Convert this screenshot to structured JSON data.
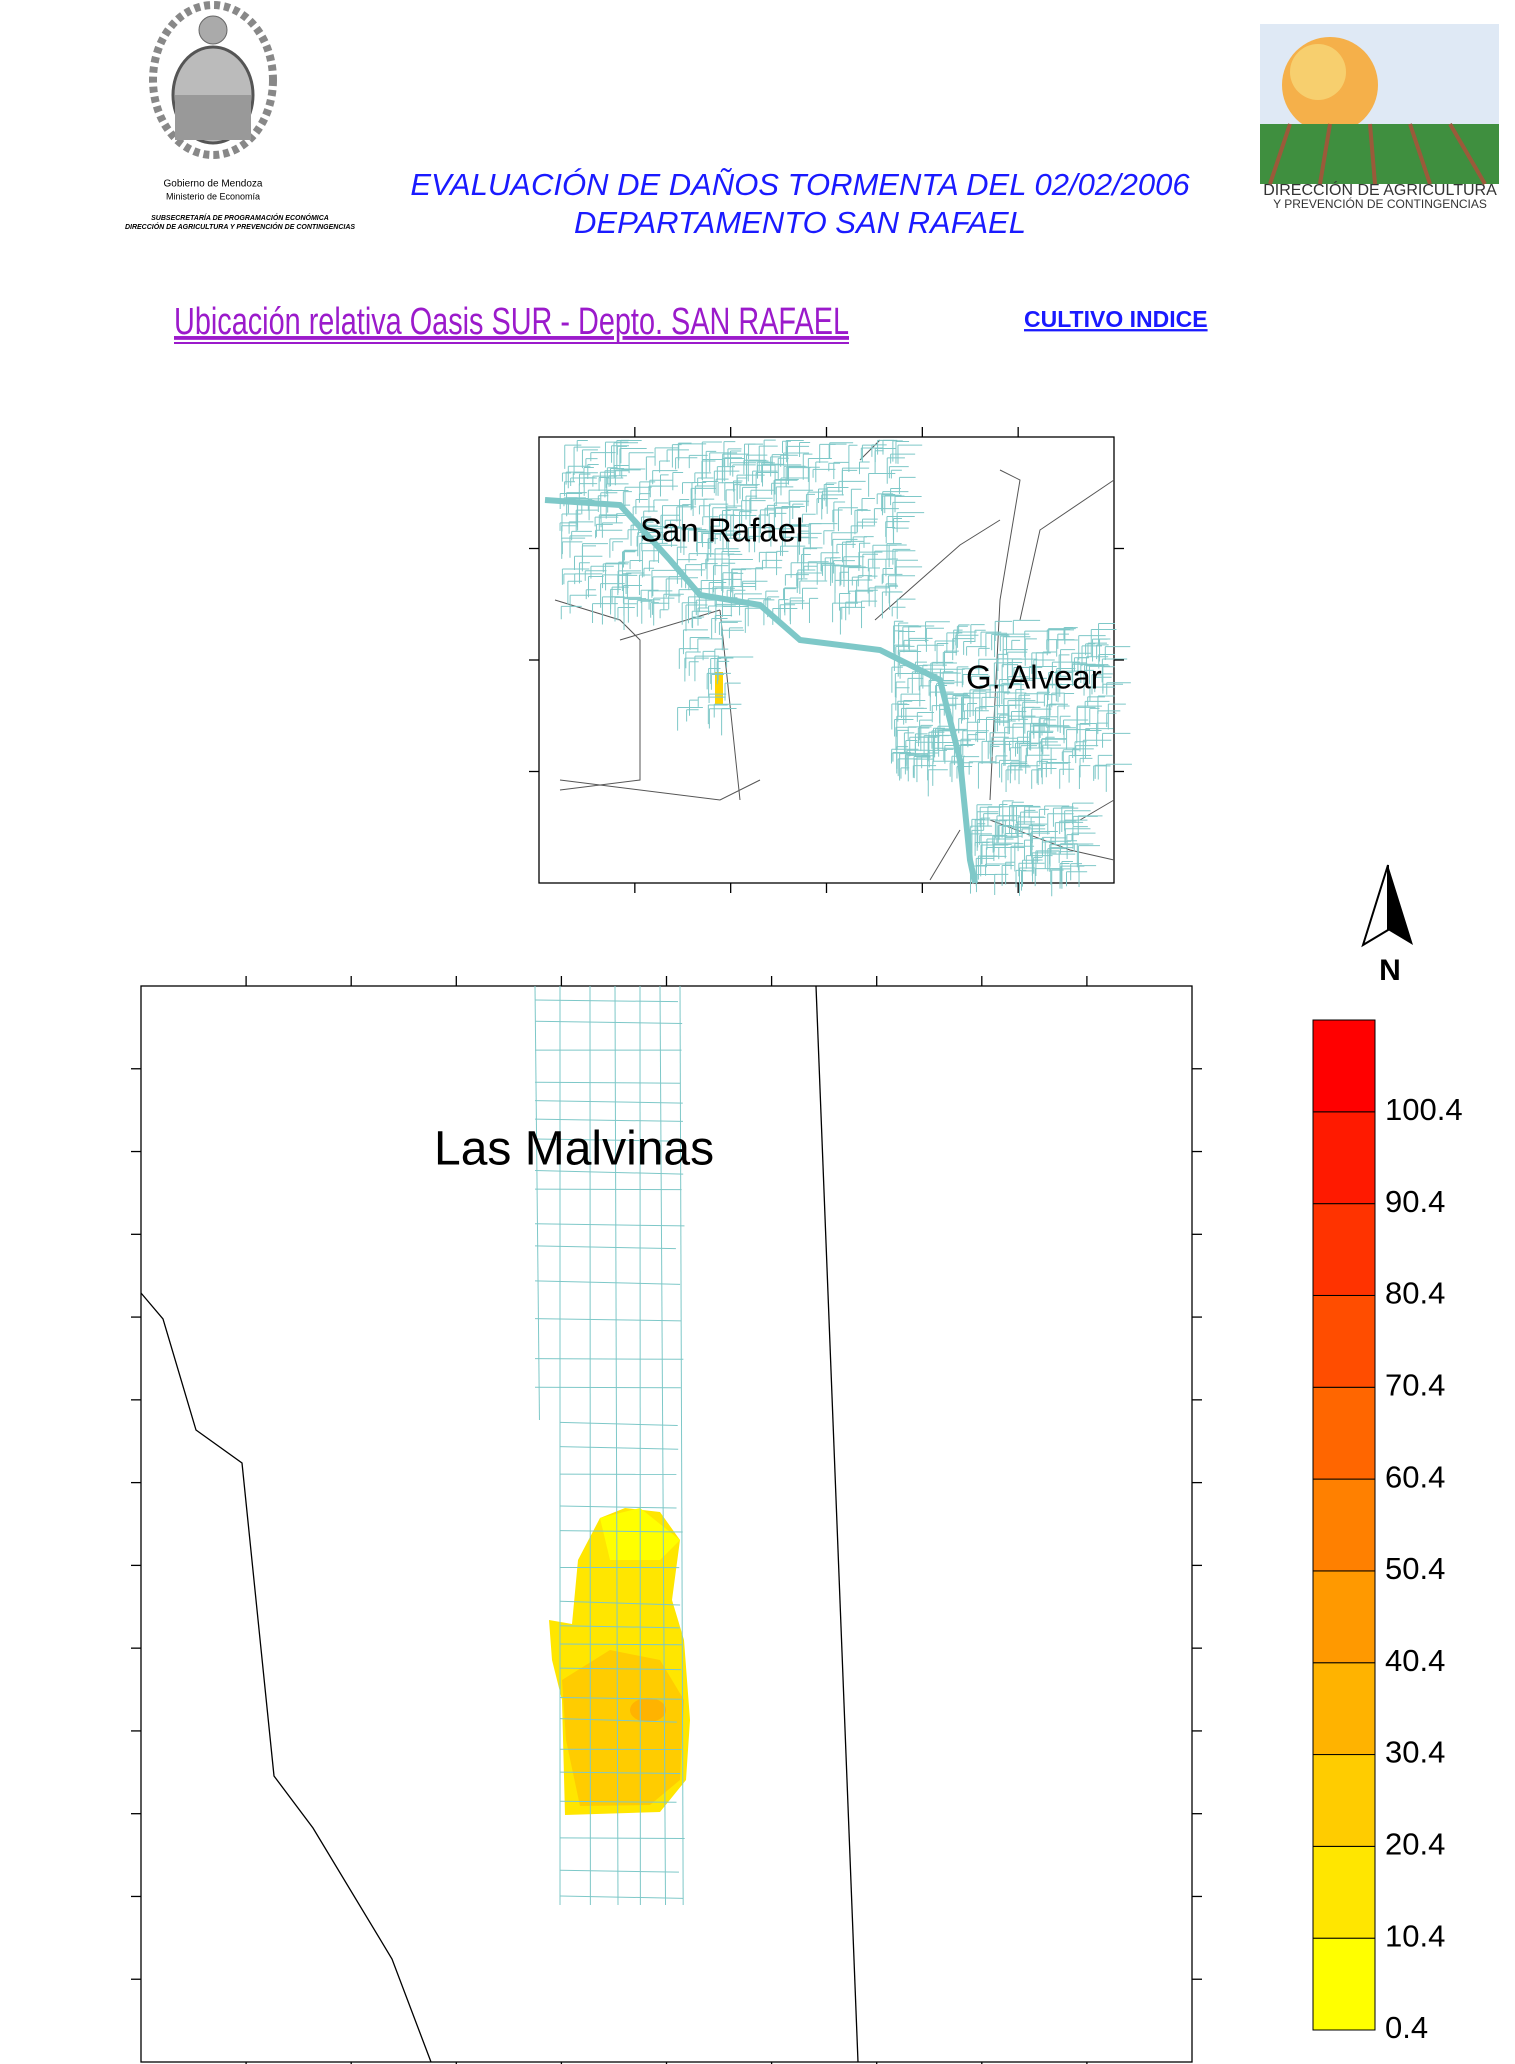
{
  "header": {
    "left_org": {
      "lines": [
        "Gobierno de Mendoza",
        "Ministerio de Economía"
      ],
      "sub_lines": [
        "SUBSECRETARÍA DE PROGRAMACIÓN ECONÓMICA",
        "DIRECCIÓN DE AGRICULTURA Y PREVENCIÓN DE CONTINGENCIAS"
      ]
    },
    "title_lines": [
      "EVALUACIÓN DE DAÑOS TORMENTA DEL 02/02/2006",
      "DEPARTAMENTO SAN RAFAEL"
    ],
    "right_org": {
      "lines": [
        "DIRECCIÓN DE AGRICULTURA",
        "Y PREVENCIÓN DE CONTINGENCIAS"
      ]
    }
  },
  "section_title": "Ubicación relativa Oasis SUR - Depto. SAN RAFAEL",
  "link": "CULTIVO INDICE",
  "overview_map": {
    "labels": [
      "San Rafael",
      "G. Alvear"
    ]
  },
  "north": "N",
  "detail_map": {
    "label": "Las Malvinas"
  },
  "legend": {
    "levels": [
      0.4,
      10.4,
      20.4,
      30.4,
      40.4,
      50.4,
      60.4,
      70.4,
      80.4,
      90.4,
      100.4
    ],
    "colors": [
      "#ffff00",
      "#ffe600",
      "#ffcc00",
      "#ffb300",
      "#ff9900",
      "#ff8000",
      "#ff6600",
      "#ff4d00",
      "#ff3300",
      "#ff1a00",
      "#ff0000"
    ]
  }
}
